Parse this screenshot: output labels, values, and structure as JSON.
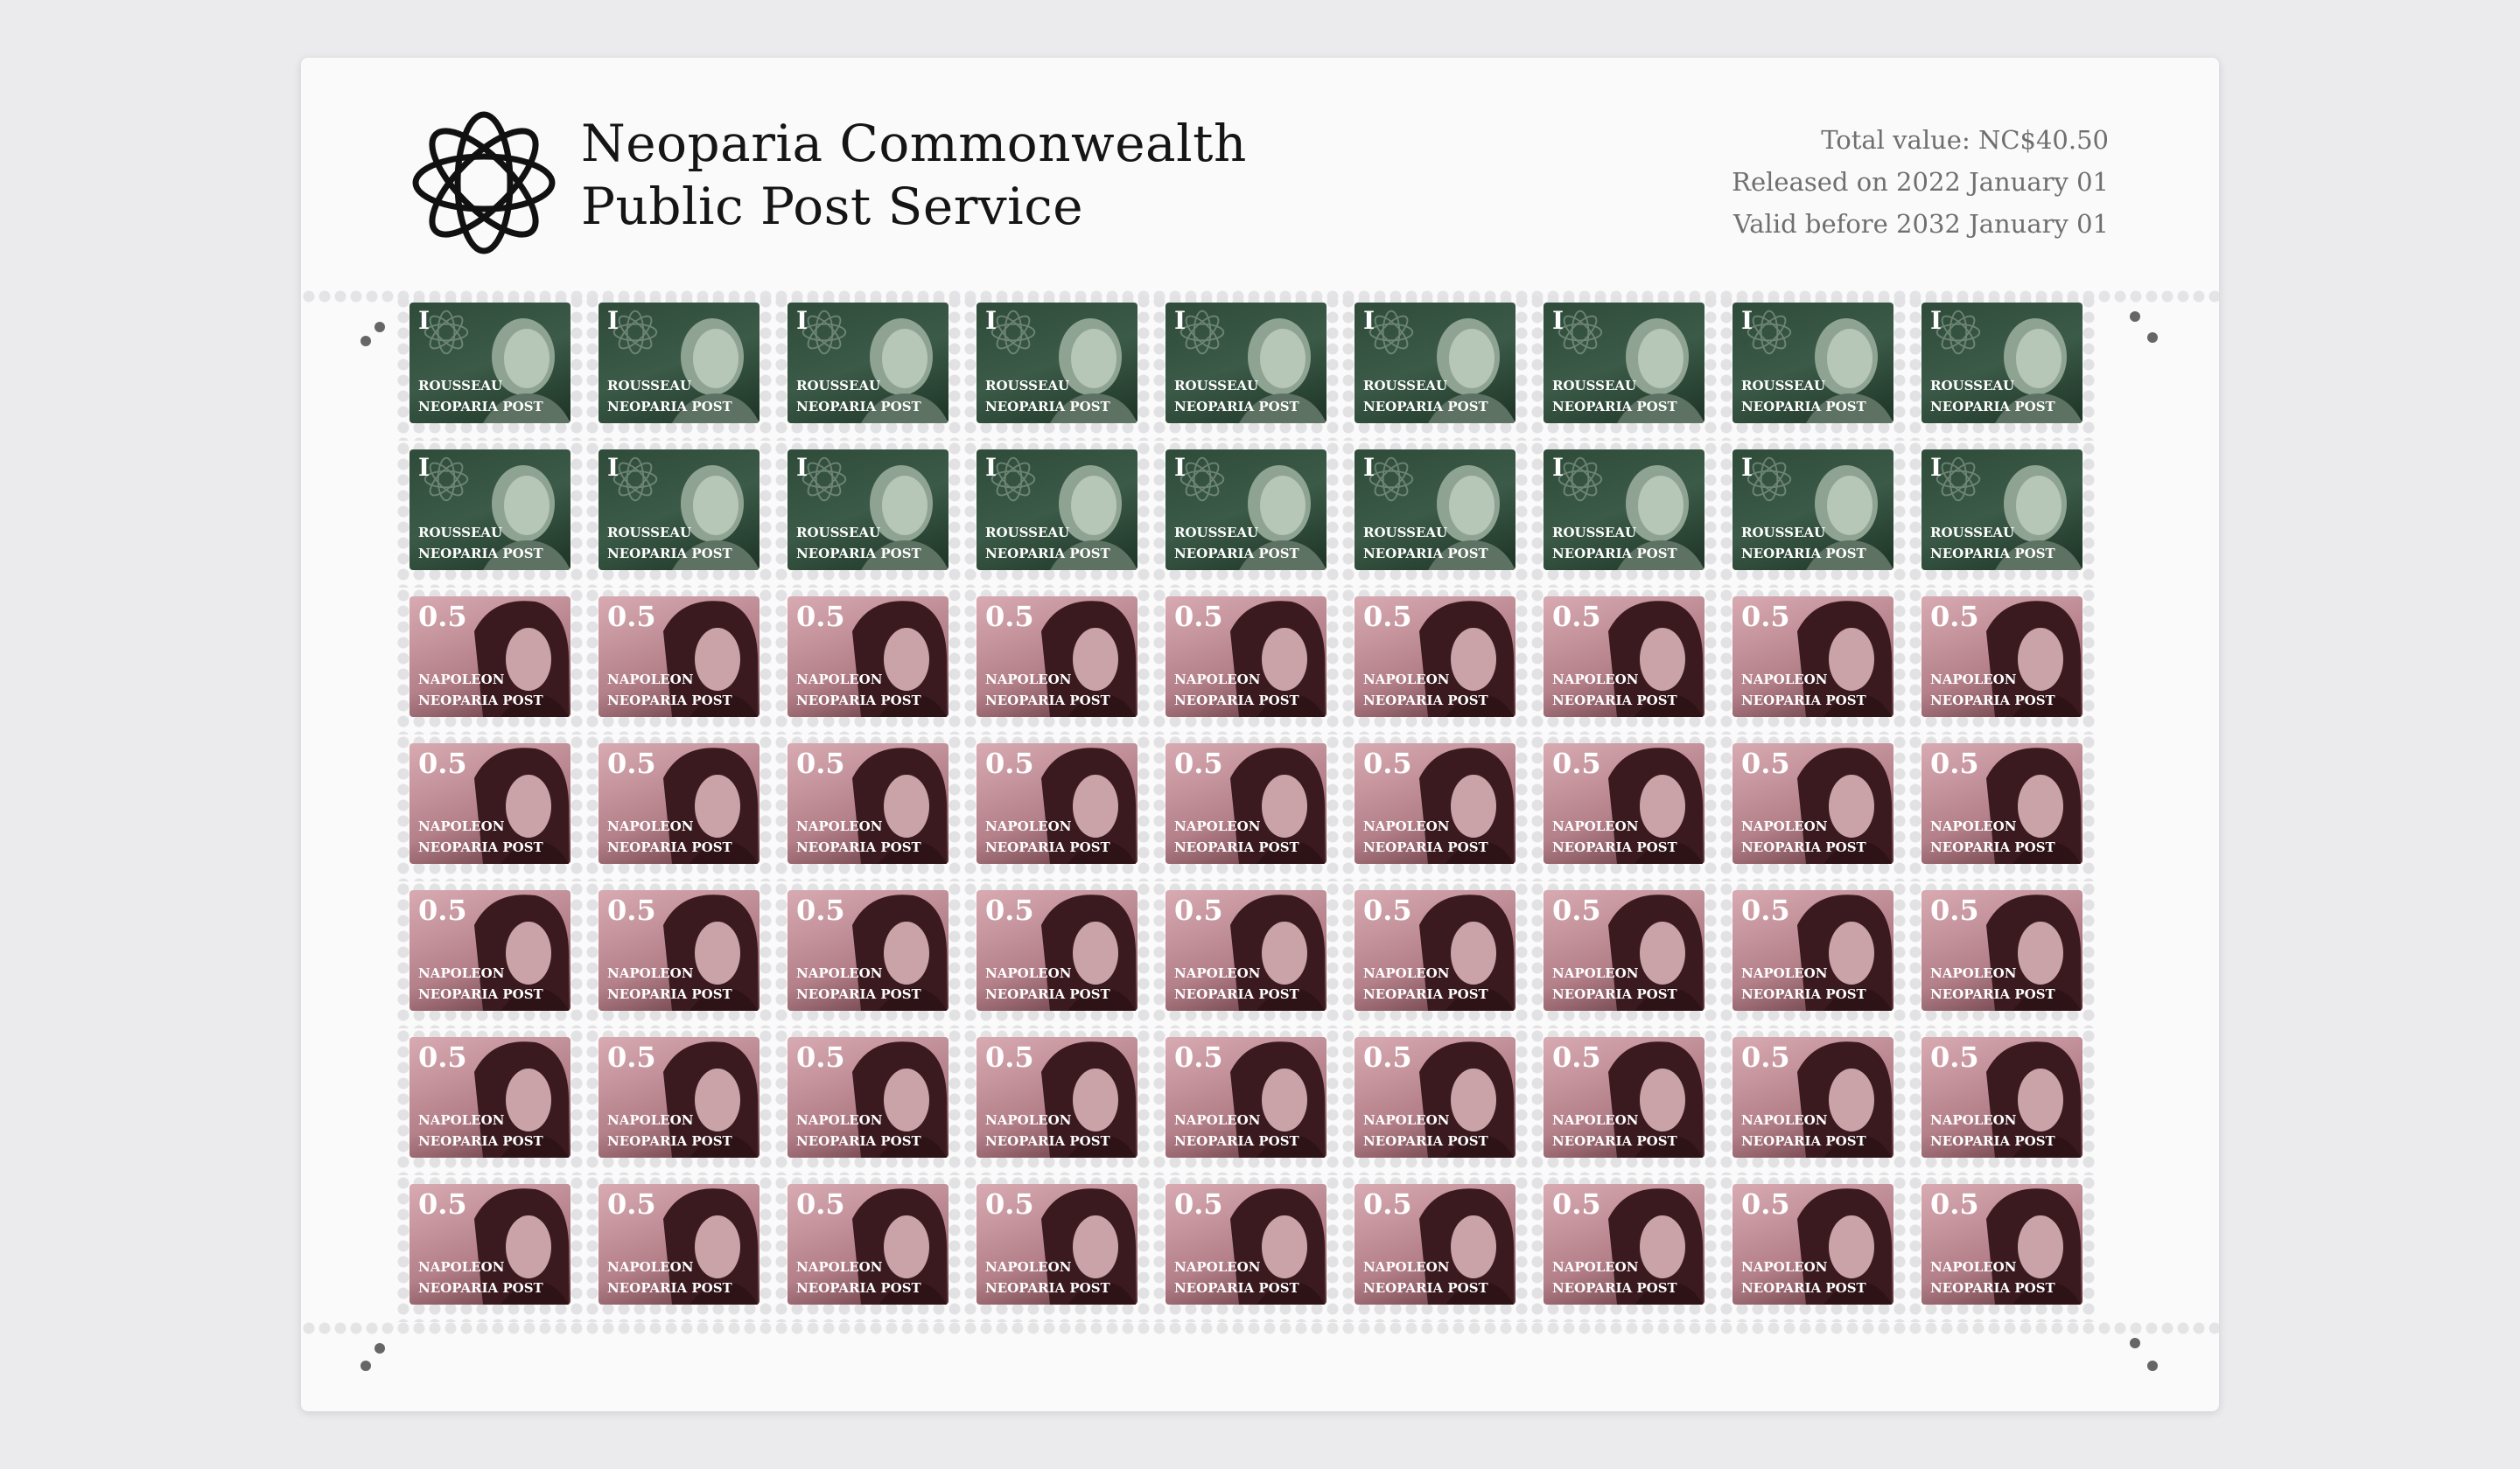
{
  "header": {
    "logo": "flower-emblem-icon",
    "title_line1": "Neoparia Commonwealth",
    "title_line2": "Public Post Service",
    "total_value": "Total value: NC$40.50",
    "released": "Released on 2022 January 01",
    "valid_before": "Valid before 2032 January 01"
  },
  "stamps": {
    "green": {
      "denomination": "I",
      "name": "ROUSSEAU",
      "post": "NEOPARIA POST",
      "color": "#2f4b3a",
      "rows": 2
    },
    "rose": {
      "denomination": "0.5",
      "name": "NAPOLEON",
      "post": "NEOPARIA POST",
      "color": "#b4808a",
      "rows": 5
    },
    "columns": 9
  }
}
